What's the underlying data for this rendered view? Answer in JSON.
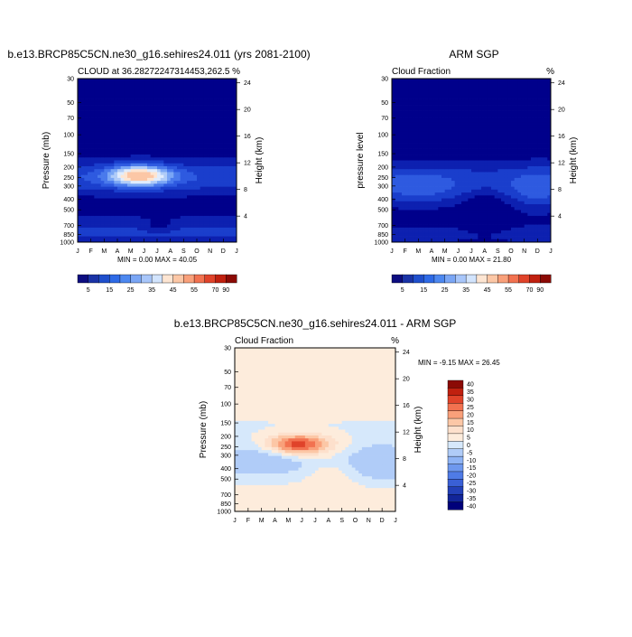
{
  "months": [
    "J",
    "F",
    "M",
    "A",
    "M",
    "J",
    "J",
    "A",
    "S",
    "O",
    "N",
    "D",
    "J"
  ],
  "pressure_ticks": [
    30,
    50,
    70,
    100,
    150,
    200,
    250,
    300,
    400,
    500,
    700,
    850,
    1000
  ],
  "height_ticks": [
    4,
    8,
    12,
    16,
    20,
    24
  ],
  "chart_data": [
    {
      "type": "heatmap",
      "title": "b.e13.BRCP85C5CN.ne30_g16.sehires24.011 (yrs 2081-2100)",
      "subtitle_left": "CLOUD at 36.28272247314453,262.5",
      "subtitle_right": "%",
      "ylabel": "Pressure (mb)",
      "ylabel_right": "Height (km)",
      "minmax": "MIN =   0.00 MAX =  40.05",
      "colorbar_labels": [
        "5",
        "15",
        "25",
        "35",
        "45",
        "55",
        "70",
        "90"
      ],
      "colorbar_colors": [
        "#0d0d80",
        "#1a33a6",
        "#1f4fcc",
        "#2e6ae6",
        "#4d88f0",
        "#7aa6f5",
        "#a8c6fa",
        "#d2e4fd",
        "#fde5d2",
        "#fcc7a6",
        "#f9a07a",
        "#f27250",
        "#e0432a",
        "#c0200f",
        "#8b0a05"
      ],
      "levels": [
        0,
        5,
        10,
        15,
        20,
        25,
        30,
        35,
        40,
        45,
        55,
        70,
        90
      ],
      "level_colors": [
        "#00008b",
        "#0d20b0",
        "#1a3ecc",
        "#2e5ae0",
        "#4a7aec",
        "#7aa6f5",
        "#b0ccf8",
        "#e0ecfd",
        "#fde5d2",
        "#fcc7a6",
        "#f9a07a",
        "#e0432a",
        "#8b0a05"
      ]
    },
    {
      "type": "heatmap",
      "title": "ARM SGP",
      "subtitle_left": "Cloud Fraction",
      "subtitle_right": "%",
      "ylabel": "pressure level",
      "ylabel_right": "Height (km)",
      "minmax": "MIN =   0.00 MAX =  21.80",
      "colorbar_labels": [
        "5",
        "15",
        "25",
        "35",
        "45",
        "55",
        "70",
        "90"
      ],
      "colorbar_colors": [
        "#0d0d80",
        "#1a33a6",
        "#1f4fcc",
        "#2e6ae6",
        "#4d88f0",
        "#7aa6f5",
        "#a8c6fa",
        "#d2e4fd",
        "#fde5d2",
        "#fcc7a6",
        "#f9a07a",
        "#f27250",
        "#e0432a",
        "#c0200f",
        "#8b0a05"
      ],
      "levels": [
        0,
        5,
        10,
        15,
        20,
        25,
        30,
        35,
        40,
        45,
        55,
        70,
        90
      ],
      "level_colors": [
        "#00008b",
        "#0d20b0",
        "#1a3ecc",
        "#2e5ae0",
        "#4a7aec",
        "#7aa6f5",
        "#b0ccf8",
        "#e0ecfd",
        "#fde5d2",
        "#fcc7a6",
        "#f9a07a",
        "#e0432a",
        "#8b0a05"
      ]
    },
    {
      "type": "heatmap",
      "title": "b.e13.BRCP85C5CN.ne30_g16.sehires24.011 - ARM SGP",
      "subtitle_left": "Cloud Fraction",
      "subtitle_right": "%",
      "ylabel": "Pressure (mb)",
      "ylabel_right": "Height (km)",
      "minmax": "MIN =  -9.15 MAX =  26.45",
      "colorbar_labels": [
        "40",
        "35",
        "30",
        "25",
        "20",
        "15",
        "10",
        "5",
        "0",
        "-5",
        "-10",
        "-15",
        "-20",
        "-25",
        "-30",
        "-35",
        "-40"
      ],
      "colorbar_colors": [
        "#8b0a05",
        "#c0200f",
        "#e0432a",
        "#f27250",
        "#f9a07a",
        "#fcc7a6",
        "#fde0cc",
        "#fdecdc",
        "#d6e8fb",
        "#b0ccf8",
        "#8fb4f5",
        "#6e98ee",
        "#4f7be6",
        "#3a60d6",
        "#2340b8",
        "#122599",
        "#00007a"
      ],
      "levels": [
        -10,
        -5,
        0,
        5,
        10,
        15,
        20,
        25,
        30
      ],
      "level_colors": [
        "#b0ccf8",
        "#d6e8fb",
        "#fdecdc",
        "#fde0cc",
        "#fcc7a6",
        "#f9a07a",
        "#f27250",
        "#e0432a",
        "#c0200f"
      ]
    }
  ]
}
